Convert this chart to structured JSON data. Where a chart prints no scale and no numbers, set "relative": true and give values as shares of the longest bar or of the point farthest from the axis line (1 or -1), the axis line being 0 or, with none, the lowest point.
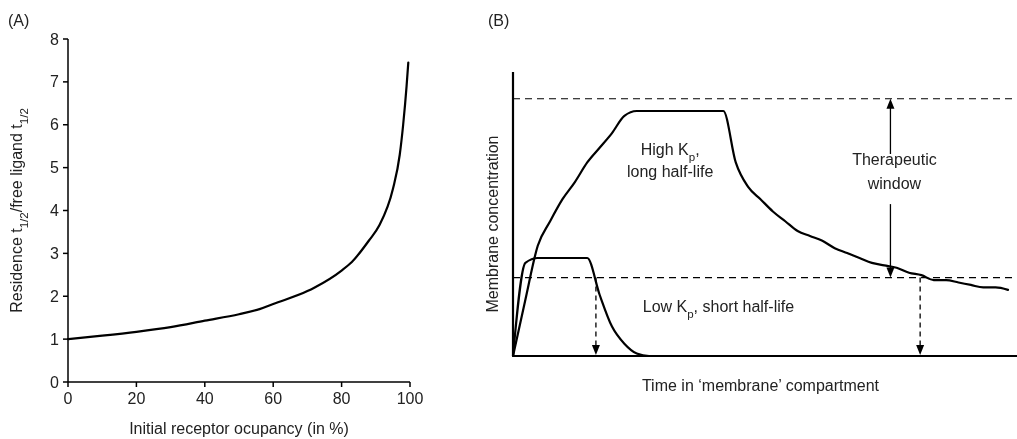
{
  "chart_data": [
    {
      "type": "line",
      "title": "(A)",
      "xlabel": "Initial receptor ocupancy (in %)",
      "ylabel": "Residence t$_{1/2}$/free ligand t$_{1/2}$",
      "xlim": [
        0,
        100
      ],
      "xticks": [
        0,
        20,
        40,
        60,
        80,
        100
      ],
      "ylim": [
        0,
        8
      ],
      "yticks": [
        0,
        1,
        2,
        3,
        4,
        5,
        6,
        7,
        8
      ],
      "line_style": "solid",
      "series": [
        {
          "color": "#000000",
          "x": [
            0,
            10,
            20,
            30,
            40,
            50,
            56,
            60,
            70,
            72,
            80,
            83,
            88,
            91,
            95,
            97,
            98,
            99,
            99.5
          ],
          "values": [
            1,
            1.08,
            1.17,
            1.28,
            1.43,
            1.58,
            1.7,
            1.82,
            2.12,
            2.2,
            2.6,
            2.8,
            3.3,
            3.65,
            4.5,
            5.3,
            6,
            6.9,
            7.45
          ]
        }
      ]
    },
    {
      "type": "line",
      "title": "(B)",
      "xlabel": "Time in ‘membrane’ compartment",
      "ylabel": "Membrane concentration",
      "relative": true,
      "line_style": "solid",
      "categories": [
        null,
        null,
        null,
        null,
        null,
        null,
        null,
        null,
        null,
        null,
        null,
        null,
        null,
        null,
        null,
        null,
        null,
        null,
        null,
        null,
        null,
        null,
        null,
        null,
        null,
        null,
        null,
        null,
        null,
        null,
        null,
        null,
        null,
        null,
        null,
        null,
        null,
        null,
        null,
        null,
        null
      ],
      "series": [
        {
          "name": "High K$_{p}$, long half-life",
          "color": "#000000",
          "values": [
            0,
            0.23,
            0.45,
            0.55,
            0.64,
            0.71,
            0.79,
            0.85,
            0.91,
            0.98,
            1,
            1,
            1,
            1,
            1,
            1,
            1,
            1,
            0.79,
            0.69,
            0.64,
            0.59,
            0.55,
            0.51,
            0.49,
            0.47,
            0.44,
            0.42,
            0.4,
            0.38,
            0.37,
            0.36,
            0.34,
            0.33,
            0.31,
            0.31,
            0.3,
            0.29,
            0.28,
            0.28,
            0.27
          ]
        },
        {
          "name": "Low K$_{p}$, short half-life",
          "color": "#000000",
          "values": [
            0,
            0.38,
            0.4,
            0.4,
            0.4,
            0.4,
            0.4,
            0.25,
            0.12,
            0.05,
            0.01,
            0,
            0,
            0,
            0,
            0,
            0,
            0,
            0,
            0,
            0,
            0,
            0,
            0,
            0,
            0,
            0,
            0,
            0,
            0,
            0,
            0,
            0,
            0,
            0,
            0,
            0,
            0,
            0,
            0,
            0
          ]
        }
      ],
      "ref_lines": [
        {
          "axis": "y",
          "value": 1.05,
          "line_style": "dashed"
        },
        {
          "axis": "y",
          "value": 0.32,
          "line_style": "dashed"
        }
      ],
      "annotations": [
        "Therapeutic window"
      ]
    }
  ]
}
